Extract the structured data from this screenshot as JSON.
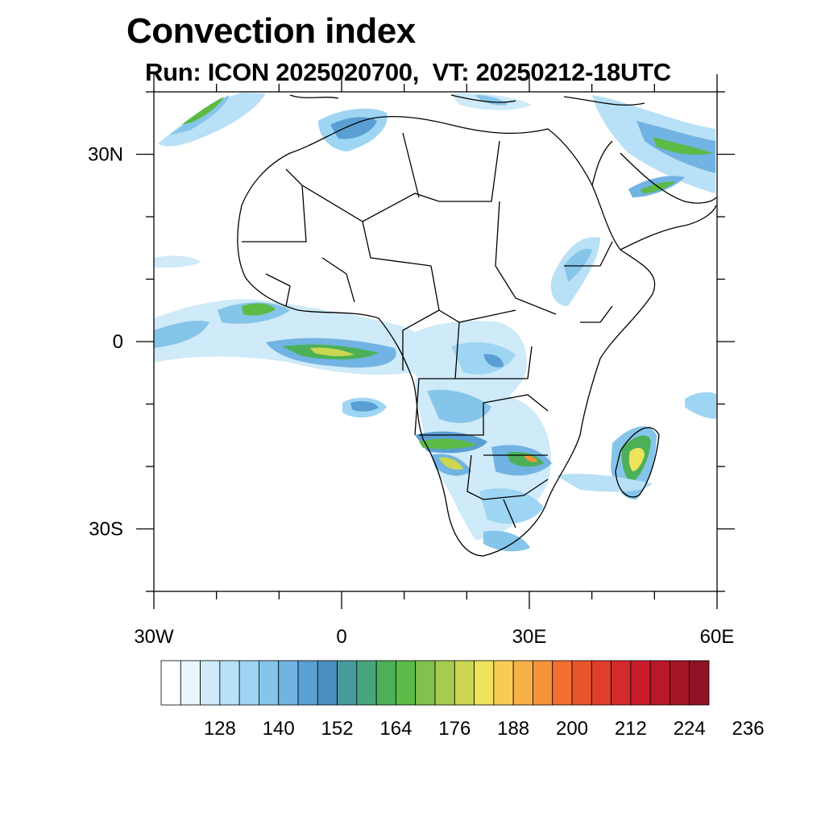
{
  "header": {
    "title": "Convection index",
    "subtitle": "Run: ICON 2025020700,  VT: 20250212-18UTC"
  },
  "map": {
    "lon_range": [
      -30,
      60
    ],
    "lat_range": [
      -40,
      40
    ],
    "lat_ticks": [
      {
        "value": 30,
        "label": "30N"
      },
      {
        "value": 0,
        "label": "0"
      },
      {
        "value": -30,
        "label": "30S"
      }
    ],
    "lon_ticks": [
      {
        "value": -30,
        "label": "30W"
      },
      {
        "value": 0,
        "label": "0"
      },
      {
        "value": 30,
        "label": "30E"
      },
      {
        "value": 60,
        "label": "60E"
      }
    ]
  },
  "colorbar": {
    "colors": [
      "#ffffff",
      "#e8f5fc",
      "#cfeaf8",
      "#b8e0f6",
      "#9dd5f3",
      "#86c5ea",
      "#71b3e2",
      "#5a9fd3",
      "#4a8fbf",
      "#479b9c",
      "#47a57c",
      "#4cb058",
      "#5cba46",
      "#80c24c",
      "#a5cc4e",
      "#cbd652",
      "#eee35a",
      "#f8cc52",
      "#f8b048",
      "#f6933b",
      "#f17030",
      "#e9552a",
      "#e03e2a",
      "#d52a2c",
      "#c91d2b",
      "#b8182a",
      "#a51628",
      "#8e1425"
    ],
    "labels": [
      "128",
      "140",
      "152",
      "164",
      "176",
      "188",
      "200",
      "212",
      "224",
      "236"
    ]
  }
}
